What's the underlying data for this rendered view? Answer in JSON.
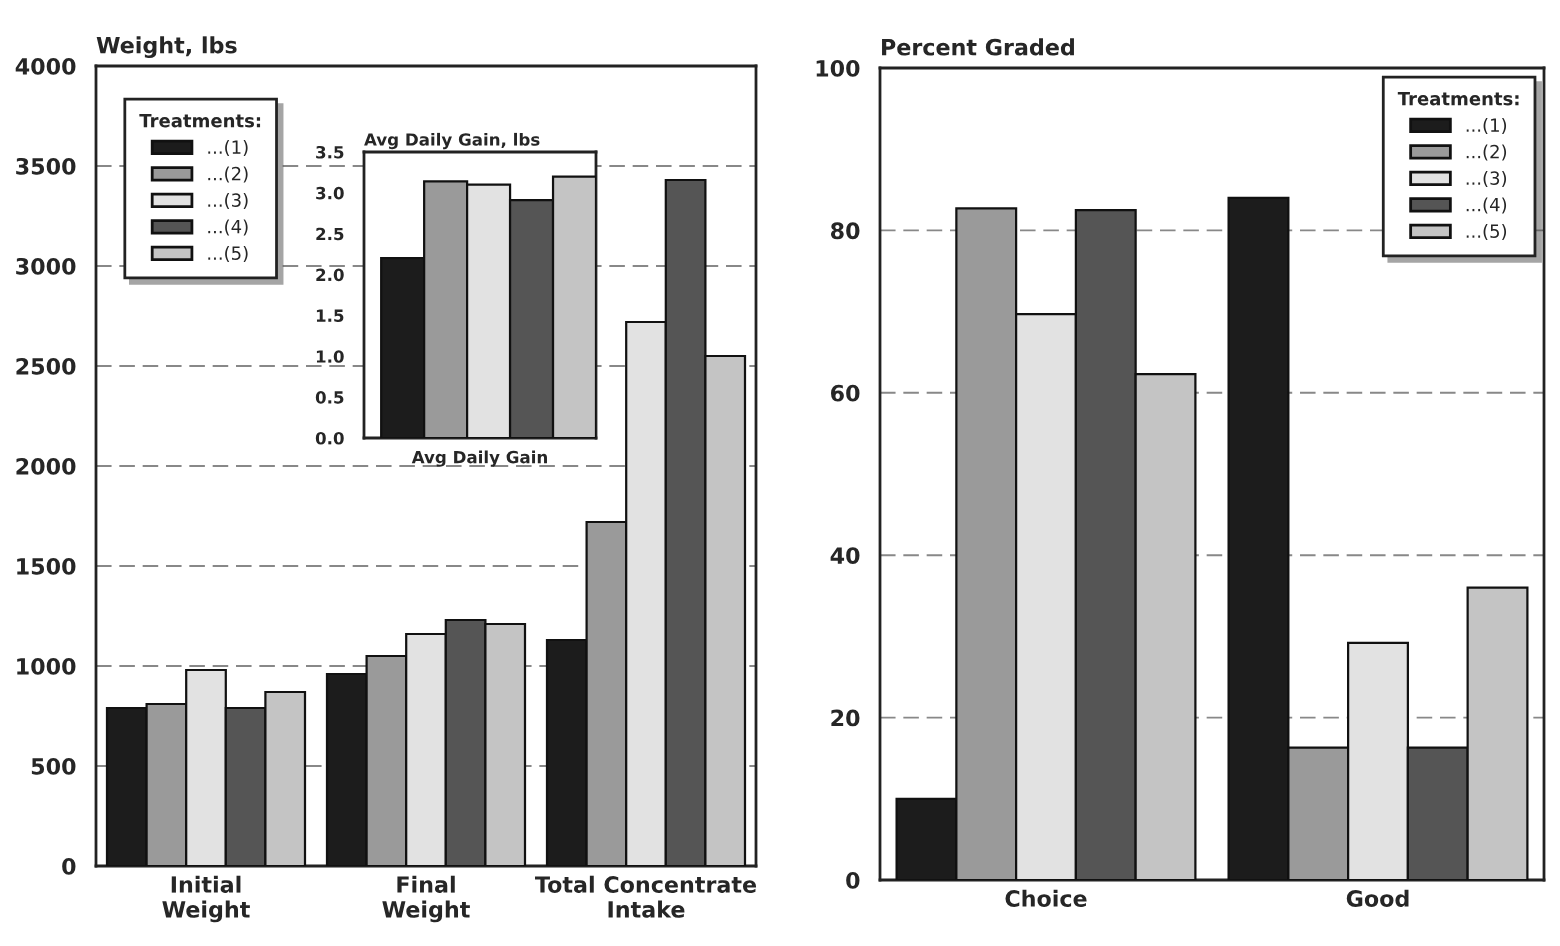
{
  "chart_data": [
    {
      "type": "bar",
      "ylabel": "Weight, lbs",
      "categories": [
        "Initial\nWeight",
        "Final\nWeight",
        "Total Concentrate\nIntake"
      ],
      "ylim": [
        0,
        4000
      ],
      "yticks": [
        0,
        500,
        1000,
        1500,
        2000,
        2500,
        3000,
        3500,
        4000
      ],
      "grid": "y",
      "legend": "top left",
      "legend_title": "Treatments:",
      "series": [
        {
          "name": "...(1)",
          "color": "#1c1c1c",
          "values": [
            790,
            960,
            1130
          ]
        },
        {
          "name": "...(2)",
          "color": "#9a9a9a",
          "values": [
            810,
            1050,
            1720
          ]
        },
        {
          "name": "...(3)",
          "color": "#e2e2e2",
          "values": [
            980,
            1160,
            2720
          ]
        },
        {
          "name": "...(4)",
          "color": "#555555",
          "values": [
            790,
            1230,
            3430
          ]
        },
        {
          "name": "...(5)",
          "color": "#c4c4c4",
          "values": [
            870,
            1210,
            2550
          ]
        }
      ]
    },
    {
      "type": "bar",
      "ylabel": "Avg Daily Gain, lbs",
      "xlabel": "Avg Daily Gain",
      "categories": [
        null,
        null,
        null,
        null,
        null
      ],
      "ylim": [
        0,
        3.5
      ],
      "yticks": [
        {
          "value": 0,
          "label": "0.0"
        },
        {
          "value": 0.5,
          "label": "0.5"
        },
        {
          "value": 1,
          "label": "1.0"
        },
        {
          "value": 1.5,
          "label": "1.5"
        },
        {
          "value": 2,
          "label": "2.0"
        },
        {
          "value": 2.5,
          "label": "2.5"
        },
        {
          "value": 3,
          "label": "3.0"
        },
        {
          "value": 3.5,
          "label": "3.5"
        }
      ],
      "values": [
        2.2,
        3.14,
        3.1,
        2.91,
        3.2
      ],
      "colors": [
        "#1c1c1c",
        "#9a9a9a",
        "#e2e2e2",
        "#555555",
        "#c4c4c4"
      ]
    },
    {
      "type": "bar",
      "ylabel": "Percent Graded",
      "categories": [
        "Choice",
        "Good"
      ],
      "ylim": [
        0,
        100
      ],
      "yticks": [
        0,
        20,
        40,
        60,
        80,
        100
      ],
      "grid": "y",
      "legend": "top right",
      "legend_title": "Treatments:",
      "series": [
        {
          "name": "...(1)",
          "color": "#1c1c1c",
          "values": [
            10,
            84
          ]
        },
        {
          "name": "...(2)",
          "color": "#9a9a9a",
          "values": [
            82.7,
            16.3
          ]
        },
        {
          "name": "...(3)",
          "color": "#e2e2e2",
          "values": [
            69.7,
            29.2
          ]
        },
        {
          "name": "...(4)",
          "color": "#555555",
          "values": [
            82.5,
            16.3
          ]
        },
        {
          "name": "...(5)",
          "color": "#c4c4c4",
          "values": [
            62.3,
            36
          ]
        }
      ]
    }
  ]
}
